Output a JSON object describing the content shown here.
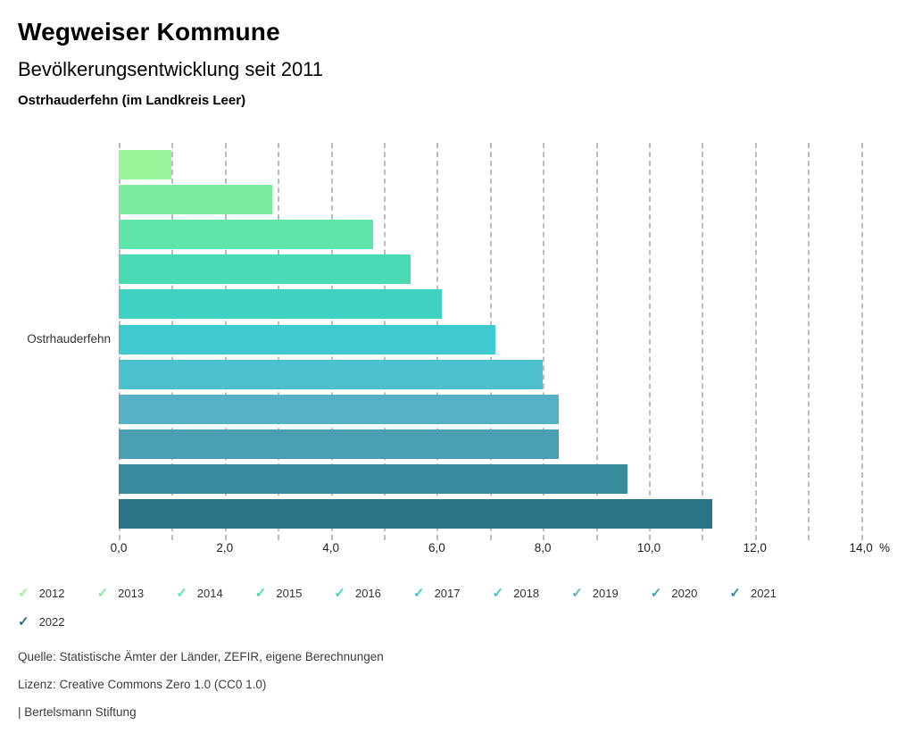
{
  "header": {
    "app_title": "Wegweiser Kommune",
    "chart_title": "Bevölkerungsentwicklung seit 2011",
    "chart_subtitle": "Ostrhauderfehn (im Landkreis Leer)"
  },
  "chart_data": {
    "type": "bar",
    "orientation": "horizontal",
    "category_label": "Ostrhauderfehn",
    "series": [
      {
        "name": "2012",
        "value": 1.0,
        "color": "#99F59A"
      },
      {
        "name": "2013",
        "value": 2.9,
        "color": "#7CEDA0"
      },
      {
        "name": "2014",
        "value": 4.8,
        "color": "#5FE5AA"
      },
      {
        "name": "2015",
        "value": 5.5,
        "color": "#4BDBB4"
      },
      {
        "name": "2016",
        "value": 6.1,
        "color": "#3FD2C3"
      },
      {
        "name": "2017",
        "value": 7.1,
        "color": "#40C9CF"
      },
      {
        "name": "2018",
        "value": 8.0,
        "color": "#4CC0CD"
      },
      {
        "name": "2019",
        "value": 8.3,
        "color": "#57B1C6"
      },
      {
        "name": "2020",
        "value": 8.3,
        "color": "#4AA0B2"
      },
      {
        "name": "2021",
        "value": 9.6,
        "color": "#39899C"
      },
      {
        "name": "2022",
        "value": 11.2,
        "color": "#2A7386"
      }
    ],
    "x_tick_values": [
      0,
      2,
      4,
      6,
      8,
      10,
      12,
      14
    ],
    "x_tick_labels": [
      "0,0",
      "2,0",
      "4,0",
      "6,0",
      "8,0",
      "10,0",
      "12,0",
      "14,0"
    ],
    "x_unit_label": "%",
    "xlim": [
      0,
      14.27
    ],
    "gridlines": "vertical dashed every 1.0",
    "legend_position": "bottom"
  },
  "footer": {
    "source": "Quelle: Statistische Ämter der Länder, ZEFIR, eigene Berechnungen",
    "license": "Lizenz: Creative Commons Zero 1.0 (CC0 1.0)",
    "attribution": "| Bertelsmann Stiftung"
  }
}
